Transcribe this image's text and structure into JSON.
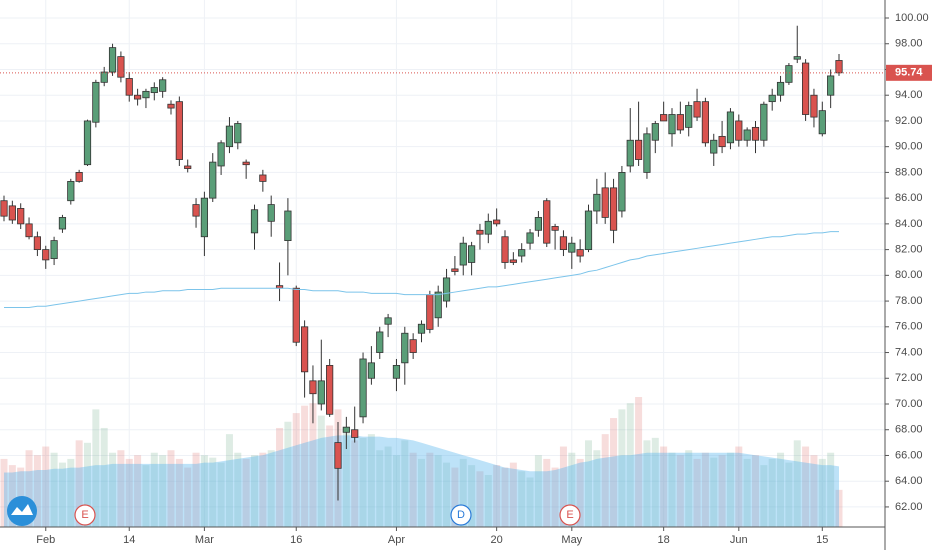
{
  "chart_data": {
    "type": "candlestick",
    "categories": [
      null,
      null,
      null,
      null,
      null,
      "Feb",
      null,
      null,
      null,
      null,
      null,
      null,
      null,
      null,
      null,
      "14",
      null,
      null,
      null,
      null,
      null,
      null,
      null,
      null,
      "Mar",
      null,
      null,
      null,
      null,
      null,
      null,
      null,
      null,
      null,
      null,
      "16",
      null,
      null,
      null,
      null,
      null,
      null,
      null,
      null,
      null,
      null,
      null,
      "Apr",
      null,
      null,
      null,
      null,
      null,
      null,
      null,
      null,
      null,
      null,
      null,
      "20",
      null,
      null,
      null,
      null,
      null,
      null,
      null,
      null,
      "May",
      null,
      null,
      null,
      null,
      null,
      null,
      null,
      null,
      null,
      null,
      "18",
      null,
      null,
      null,
      null,
      null,
      null,
      null,
      null,
      "Jun",
      null,
      null,
      null,
      null,
      null,
      null,
      null,
      null,
      null,
      "15",
      null,
      null
    ],
    "open": [
      85.8,
      85.4,
      85.2,
      84.0,
      83.0,
      82.0,
      81.3,
      83.6,
      85.8,
      88.0,
      88.6,
      91.9,
      95.0,
      95.8,
      97.0,
      95.3,
      94.0,
      93.8,
      94.2,
      94.3,
      93.3,
      93.5,
      88.5,
      85.5,
      83.0,
      86.0,
      88.5,
      90.0,
      90.3,
      88.8,
      83.3,
      87.8,
      84.2,
      79.2,
      82.7,
      79.0,
      76.0,
      71.8,
      70.0,
      73.0,
      67.0,
      67.8,
      68.0,
      69.0,
      72.0,
      74.0,
      76.2,
      72.0,
      73.2,
      75.0,
      75.5,
      78.5,
      76.7,
      78.0,
      80.5,
      80.8,
      81.0,
      83.5,
      83.2,
      84.3,
      83.0,
      81.2,
      81.5,
      82.5,
      83.5,
      85.8,
      83.8,
      83.0,
      81.8,
      82.0,
      82.0,
      85.0,
      86.8,
      86.8,
      85.0,
      88.5,
      90.5,
      88.0,
      90.5,
      92.5,
      91.0,
      92.5,
      91.5,
      93.5,
      93.5,
      89.5,
      90.8,
      90.3,
      92.0,
      90.5,
      91.5,
      90.5,
      93.5,
      94.0,
      95.0,
      96.8,
      96.5,
      94.0,
      91.0,
      94.0,
      96.7
    ],
    "high": [
      86.2,
      85.8,
      85.6,
      84.5,
      83.4,
      82.3,
      83.0,
      84.7,
      87.5,
      88.2,
      92.1,
      95.2,
      96.2,
      98.0,
      97.4,
      95.8,
      94.5,
      94.5,
      95.0,
      95.4,
      93.6,
      93.9,
      89.0,
      86.0,
      86.5,
      89.5,
      90.5,
      92.3,
      92.0,
      89.0,
      85.5,
      88.2,
      86.2,
      81.0,
      86.0,
      79.2,
      76.5,
      73.0,
      75.0,
      73.5,
      68.6,
      69.0,
      69.8,
      74.0,
      74.5,
      76.0,
      77.0,
      73.5,
      76.0,
      75.5,
      76.5,
      78.8,
      79.2,
      80.5,
      81.5,
      83.0,
      82.6,
      84.0,
      84.8,
      85.2,
      83.5,
      81.8,
      82.5,
      83.6,
      85.0,
      86.0,
      84.0,
      83.5,
      83.0,
      82.8,
      85.5,
      87.5,
      88.0,
      87.5,
      88.5,
      93.0,
      93.5,
      91.5,
      92.0,
      93.5,
      93.0,
      93.5,
      93.5,
      94.5,
      93.8,
      91.0,
      92.0,
      93.0,
      92.5,
      91.5,
      92.0,
      93.5,
      94.5,
      95.5,
      96.5,
      99.4,
      96.8,
      94.5,
      93.5,
      96.0,
      97.2
    ],
    "low": [
      84.2,
      84.0,
      83.6,
      82.8,
      81.5,
      80.5,
      80.8,
      83.3,
      85.5,
      87.2,
      88.5,
      91.5,
      94.7,
      95.5,
      95.0,
      93.5,
      93.2,
      93.0,
      93.6,
      93.8,
      92.5,
      88.5,
      88.0,
      83.7,
      81.5,
      85.7,
      87.8,
      89.5,
      89.8,
      87.5,
      82.0,
      86.5,
      83.0,
      78.0,
      80.0,
      74.5,
      70.5,
      68.5,
      69.5,
      69.0,
      62.5,
      66.5,
      67.0,
      68.5,
      71.5,
      73.5,
      75.2,
      71.0,
      71.5,
      73.5,
      74.8,
      75.5,
      76.0,
      77.5,
      80.0,
      80.0,
      80.0,
      82.0,
      82.5,
      83.8,
      80.5,
      80.8,
      81.0,
      82.0,
      83.0,
      82.2,
      82.0,
      81.5,
      80.5,
      81.0,
      81.8,
      84.0,
      84.0,
      82.5,
      84.5,
      88.0,
      88.5,
      87.5,
      89.5,
      92.0,
      90.0,
      91.0,
      90.8,
      92.0,
      90.0,
      88.5,
      89.5,
      89.8,
      90.0,
      90.0,
      89.5,
      90.0,
      92.8,
      93.5,
      94.8,
      96.5,
      92.0,
      91.5,
      90.8,
      93.0,
      95.5
    ],
    "close": [
      84.6,
      84.3,
      84.0,
      83.0,
      82.0,
      81.2,
      82.7,
      84.5,
      87.3,
      87.3,
      92.0,
      95.0,
      95.8,
      97.7,
      95.4,
      94.0,
      93.7,
      94.3,
      94.6,
      95.2,
      93.0,
      89.0,
      88.3,
      84.6,
      86.0,
      88.8,
      90.3,
      91.6,
      91.8,
      88.6,
      85.1,
      87.3,
      85.5,
      79.0,
      85.0,
      74.8,
      72.5,
      70.8,
      71.8,
      69.2,
      65.0,
      68.2,
      67.4,
      73.5,
      73.2,
      75.6,
      76.7,
      73.0,
      75.5,
      74.0,
      76.2,
      75.8,
      78.7,
      79.8,
      80.3,
      82.5,
      82.3,
      83.2,
      84.2,
      84.0,
      81.0,
      81.0,
      82.0,
      83.3,
      84.5,
      82.5,
      83.5,
      82.0,
      82.5,
      81.5,
      85.0,
      86.3,
      84.5,
      83.5,
      88.0,
      90.5,
      89.0,
      91.0,
      91.8,
      92.0,
      92.5,
      91.3,
      93.2,
      92.3,
      90.3,
      90.5,
      90.0,
      92.7,
      90.5,
      91.3,
      90.5,
      93.3,
      94.0,
      95.0,
      96.3,
      97.0,
      92.5,
      92.3,
      92.8,
      95.5,
      95.74
    ],
    "moving_average": [
      77.5,
      77.5,
      77.5,
      77.5,
      77.6,
      77.6,
      77.7,
      77.8,
      77.9,
      78.0,
      78.1,
      78.2,
      78.3,
      78.4,
      78.5,
      78.6,
      78.6,
      78.7,
      78.7,
      78.8,
      78.8,
      78.8,
      78.9,
      78.9,
      78.9,
      78.9,
      79.0,
      79.0,
      79.0,
      79.0,
      79.0,
      79.0,
      79.0,
      79.0,
      79.0,
      78.9,
      78.9,
      78.8,
      78.8,
      78.8,
      78.8,
      78.7,
      78.7,
      78.7,
      78.6,
      78.6,
      78.6,
      78.6,
      78.5,
      78.5,
      78.5,
      78.5,
      78.5,
      78.6,
      78.7,
      78.8,
      78.9,
      79.0,
      79.1,
      79.1,
      79.2,
      79.3,
      79.4,
      79.5,
      79.6,
      79.7,
      79.8,
      79.9,
      80.0,
      80.1,
      80.3,
      80.4,
      80.6,
      80.8,
      81.0,
      81.2,
      81.3,
      81.5,
      81.6,
      81.7,
      81.8,
      81.9,
      82.0,
      82.1,
      82.2,
      82.3,
      82.4,
      82.5,
      82.6,
      82.7,
      82.8,
      82.9,
      83.0,
      83.0,
      83.1,
      83.2,
      83.2,
      83.3,
      83.3,
      83.4,
      83.4
    ],
    "volume": [
      55,
      50,
      48,
      62,
      58,
      65,
      60,
      52,
      55,
      70,
      68,
      95,
      80,
      60,
      62,
      55,
      58,
      50,
      60,
      58,
      62,
      55,
      48,
      60,
      58,
      56,
      52,
      75,
      60,
      55,
      58,
      60,
      62,
      80,
      85,
      92,
      98,
      100,
      90,
      82,
      95,
      78,
      70,
      72,
      75,
      62,
      65,
      58,
      70,
      60,
      55,
      60,
      58,
      52,
      48,
      55,
      50,
      45,
      42,
      50,
      48,
      52,
      45,
      40,
      58,
      55,
      48,
      65,
      60,
      55,
      70,
      62,
      75,
      88,
      95,
      100,
      105,
      70,
      72,
      65,
      60,
      58,
      62,
      55,
      60,
      56,
      58,
      60,
      65,
      55,
      58,
      50,
      55,
      60,
      52,
      70,
      65,
      58,
      55,
      60,
      30
    ],
    "volume_ma": [
      44,
      44,
      45,
      45,
      46,
      46,
      47,
      47,
      48,
      48,
      49,
      50,
      50,
      51,
      51,
      51,
      51,
      51,
      51,
      51,
      51,
      51,
      51,
      51,
      52,
      52,
      53,
      54,
      55,
      56,
      57,
      58,
      60,
      62,
      64,
      66,
      68,
      70,
      72,
      73,
      74,
      74,
      74,
      73,
      73,
      73,
      72,
      72,
      71,
      70,
      68,
      66,
      64,
      62,
      60,
      58,
      56,
      54,
      52,
      50,
      48,
      47,
      46,
      45,
      45,
      45,
      46,
      48,
      50,
      52,
      53,
      55,
      56,
      57,
      58,
      58,
      59,
      60,
      60,
      60,
      60,
      60,
      60,
      60,
      60,
      60,
      60,
      60,
      60,
      59,
      58,
      57,
      56,
      55,
      54,
      53,
      52,
      51,
      50,
      50,
      49
    ],
    "up_color": "#5a9e78",
    "down_color": "#d9534f",
    "ma_color": "#7cc4ea",
    "volume_ma_color": "#5bb6ee",
    "last_price": 95.74,
    "events": [
      "E",
      "D",
      "E"
    ],
    "ylim": [
      60.44,
      101.4
    ],
    "yticks": [
      {
        "value": 62,
        "label": "62.00"
      },
      {
        "value": 64,
        "label": "64.00"
      },
      {
        "value": 66,
        "label": "66.00"
      },
      {
        "value": 68,
        "label": "68.00"
      },
      {
        "value": 70,
        "label": "70.00"
      },
      {
        "value": 72,
        "label": "72.00"
      },
      {
        "value": 74,
        "label": "74.00"
      },
      {
        "value": 76,
        "label": "76.00"
      },
      {
        "value": 78,
        "label": "78.00"
      },
      {
        "value": 80,
        "label": "80.00"
      },
      {
        "value": 82,
        "label": "82.00"
      },
      {
        "value": 84,
        "label": "84.00"
      },
      {
        "value": 86,
        "label": "86.00"
      },
      {
        "value": 88,
        "label": "88.00"
      },
      {
        "value": 90,
        "label": "90.00"
      },
      {
        "value": 92,
        "label": "92.00"
      },
      {
        "value": 94,
        "label": "94.00"
      },
      {
        "value": 96,
        "label": "96.00"
      },
      {
        "value": 98,
        "label": "98.00"
      },
      {
        "value": 100,
        "label": "100.00"
      }
    ],
    "grid": true
  }
}
